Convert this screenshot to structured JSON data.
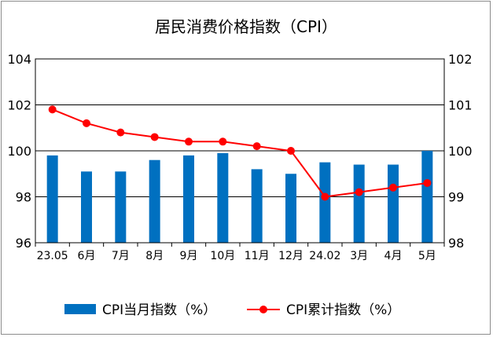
{
  "chart_data": {
    "type": "bar+line",
    "title": "居民消费价格指数（CPI）",
    "categories": [
      "23.05",
      "6月",
      "7月",
      "8月",
      "9月",
      "10月",
      "11月",
      "12月",
      "24.02",
      "3月",
      "4月",
      "5月"
    ],
    "series": [
      {
        "name": "CPI当月指数（%）",
        "type": "bar",
        "axis": "left",
        "color": "#0070c0",
        "values": [
          99.8,
          99.1,
          99.1,
          99.6,
          99.8,
          99.9,
          99.2,
          99.0,
          99.5,
          99.4,
          99.4,
          100.0
        ]
      },
      {
        "name": "CPI累计指数（%）",
        "type": "line",
        "axis": "right",
        "color": "#ff0000",
        "values": [
          100.9,
          100.6,
          100.4,
          100.3,
          100.2,
          100.2,
          100.1,
          100.0,
          99.0,
          99.1,
          99.2,
          99.3
        ]
      }
    ],
    "y_left": {
      "min": 96,
      "max": 104,
      "ticks": [
        96,
        98,
        100,
        102,
        104
      ]
    },
    "y_right": {
      "min": 98,
      "max": 102,
      "ticks": [
        98,
        99,
        100,
        101,
        102
      ]
    },
    "grid": true,
    "legend_position": "bottom"
  }
}
